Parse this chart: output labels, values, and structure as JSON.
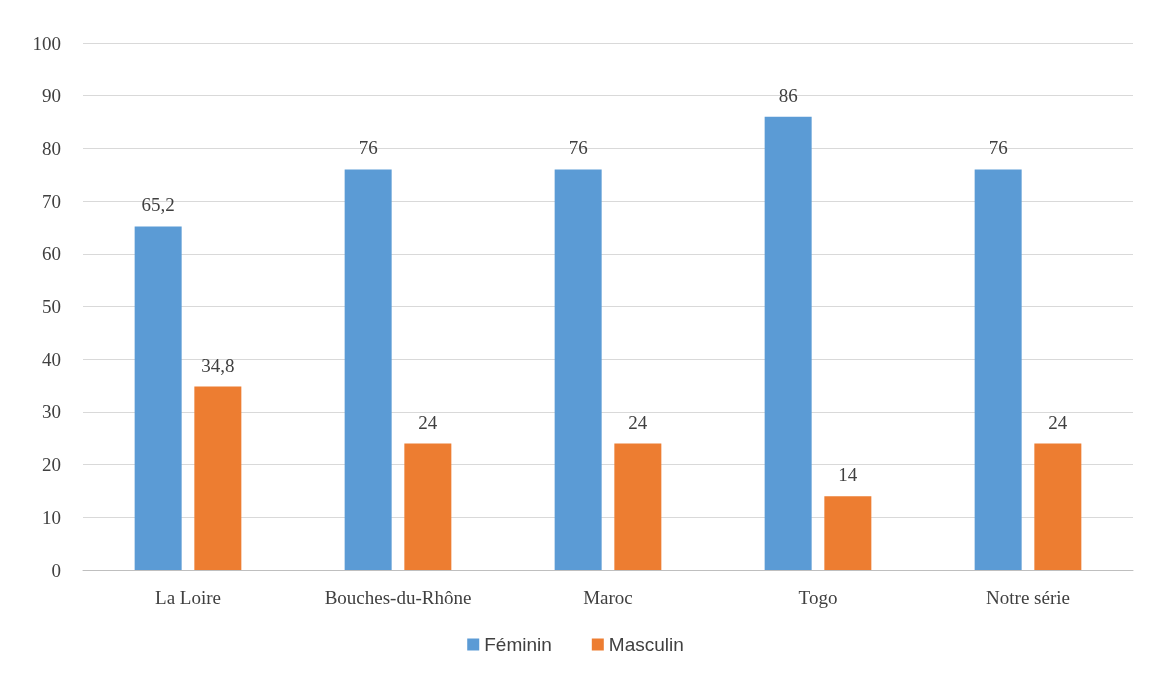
{
  "chart_data": {
    "type": "bar",
    "categories": [
      "La Loire",
      "Bouches-du-Rhône",
      "Maroc",
      "Togo",
      "Notre série"
    ],
    "series": [
      {
        "name": "Féminin",
        "color": "#5b9bd5",
        "values": [
          65.2,
          76,
          76,
          86,
          76
        ],
        "value_labels": [
          "65,2",
          "76",
          "76",
          "86",
          "76"
        ]
      },
      {
        "name": "Masculin",
        "color": "#ed7d31",
        "values": [
          34.8,
          24,
          24,
          14,
          24
        ],
        "value_labels": [
          "34,8",
          "24",
          "24",
          "14",
          "24"
        ]
      }
    ],
    "ylim": [
      0,
      100
    ],
    "yticks": [
      0,
      10,
      20,
      30,
      40,
      50,
      60,
      70,
      80,
      90,
      100
    ],
    "grid": "y",
    "legend": "bottom"
  }
}
